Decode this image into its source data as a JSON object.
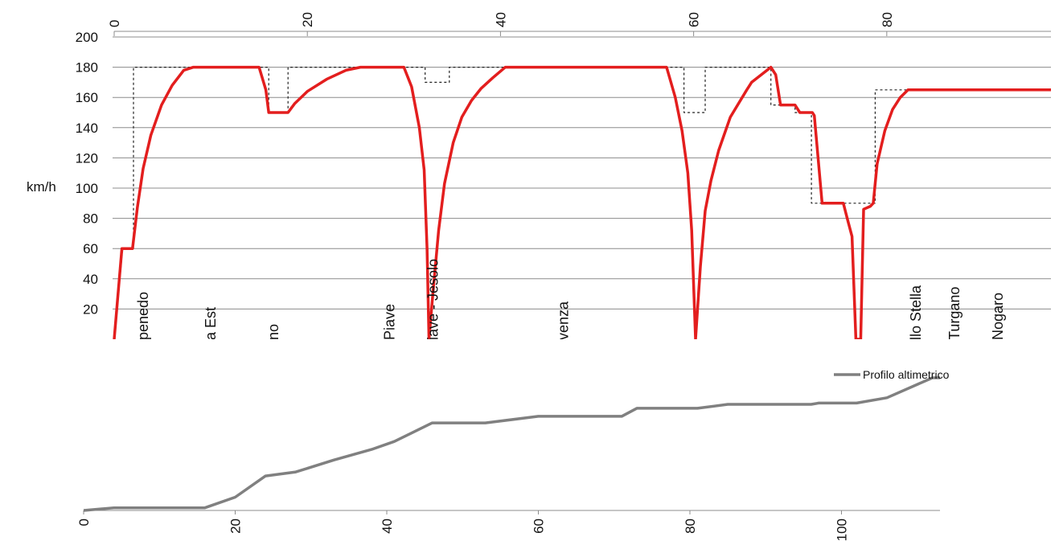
{
  "chart_data": [
    {
      "type": "line",
      "title": "",
      "xlabel": "",
      "ylabel": "km/h",
      "xlim": [
        0,
        97
      ],
      "ylim": [
        0,
        200
      ],
      "x_ticks": [
        0,
        20,
        40,
        60,
        80
      ],
      "y_ticks": [
        0,
        20,
        40,
        60,
        80,
        100,
        120,
        140,
        160,
        180,
        200
      ],
      "grid": true,
      "x_axis_position": "top",
      "series": [
        {
          "color": "#e31e1e",
          "style": "solid",
          "points": [
            [
              0.0,
              0
            ],
            [
              0.8,
              60
            ],
            [
              1.9,
              60
            ],
            [
              2.4,
              87
            ],
            [
              3.0,
              113
            ],
            [
              3.8,
              135
            ],
            [
              4.9,
              155
            ],
            [
              6.0,
              168
            ],
            [
              7.2,
              178
            ],
            [
              8.2,
              180
            ],
            [
              15.0,
              180
            ],
            [
              15.7,
              165
            ],
            [
              16.0,
              150
            ],
            [
              18.0,
              150
            ],
            [
              18.7,
              156
            ],
            [
              20.0,
              164
            ],
            [
              22.0,
              172
            ],
            [
              24.0,
              178
            ],
            [
              25.5,
              180
            ],
            [
              30.0,
              180
            ],
            [
              30.8,
              167
            ],
            [
              31.6,
              140
            ],
            [
              32.1,
              112
            ],
            [
              32.4,
              60
            ],
            [
              32.6,
              0
            ],
            [
              33.0,
              30
            ],
            [
              33.6,
              72
            ],
            [
              34.2,
              103
            ],
            [
              35.1,
              130
            ],
            [
              36.0,
              147
            ],
            [
              37.0,
              158
            ],
            [
              38.0,
              166
            ],
            [
              39.2,
              173
            ],
            [
              40.5,
              180
            ],
            [
              57.2,
              180
            ],
            [
              58.1,
              160
            ],
            [
              58.8,
              138
            ],
            [
              59.4,
              110
            ],
            [
              59.8,
              72
            ],
            [
              60.2,
              0
            ],
            [
              60.7,
              48
            ],
            [
              61.2,
              85
            ],
            [
              61.8,
              105
            ],
            [
              62.6,
              125
            ],
            [
              63.8,
              147
            ],
            [
              65.5,
              165
            ],
            [
              66.0,
              170
            ],
            [
              68.0,
              180
            ],
            [
              68.5,
              175
            ],
            [
              69.0,
              155
            ],
            [
              70.5,
              155
            ],
            [
              71.0,
              150
            ],
            [
              72.3,
              150
            ],
            [
              72.5,
              148
            ],
            [
              73.3,
              90
            ],
            [
              75.5,
              90
            ],
            [
              75.9,
              80
            ],
            [
              76.4,
              68
            ],
            [
              76.8,
              0
            ],
            [
              77.3,
              0
            ],
            [
              77.6,
              86
            ],
            [
              78.3,
              88
            ],
            [
              78.6,
              90
            ],
            [
              79.0,
              116
            ],
            [
              79.8,
              138
            ],
            [
              80.6,
              152
            ],
            [
              81.4,
              160
            ],
            [
              82.2,
              165
            ],
            [
              97.0,
              165
            ]
          ]
        },
        {
          "color": "#222222",
          "style": "dashed",
          "points": [
            [
              0.0,
              0
            ],
            [
              0.9,
              60
            ],
            [
              2.0,
              60
            ],
            [
              2.0,
              180
            ],
            [
              16.0,
              180
            ],
            [
              16.0,
              150
            ],
            [
              18.0,
              150
            ],
            [
              18.0,
              180
            ],
            [
              32.2,
              180
            ],
            [
              32.2,
              170
            ],
            [
              34.7,
              170
            ],
            [
              34.7,
              180
            ],
            [
              59.0,
              180
            ],
            [
              59.0,
              150
            ],
            [
              61.2,
              150
            ],
            [
              61.2,
              180
            ],
            [
              68.0,
              180
            ],
            [
              68.0,
              155
            ],
            [
              70.5,
              155
            ],
            [
              70.5,
              150
            ],
            [
              72.2,
              150
            ],
            [
              72.2,
              90
            ],
            [
              78.8,
              90
            ],
            [
              78.8,
              165
            ],
            [
              97.0,
              165
            ]
          ]
        }
      ],
      "station_labels": [
        {
          "text": "penedo",
          "x": 3.0
        },
        {
          "text": "a Est",
          "x": 10.0
        },
        {
          "text": "no",
          "x": 16.5
        },
        {
          "text": "Piave",
          "x": 28.5
        },
        {
          "text": "iave - Jesolo",
          "x": 33.0
        },
        {
          "text": "venza",
          "x": 46.5
        },
        {
          "text": "llo Stella",
          "x": 83.0
        },
        {
          "text": "Turgano",
          "x": 87.0
        },
        {
          "text": "Nogaro",
          "x": 91.5
        }
      ]
    },
    {
      "type": "line",
      "title": "",
      "xlabel": "",
      "ylabel": "",
      "xlim": [
        0,
        113
      ],
      "ylim": [
        0,
        100
      ],
      "x_ticks": [
        0,
        20,
        40,
        60,
        80,
        100
      ],
      "grid": false,
      "legend": {
        "entries": [
          "Profilo altimetrico"
        ],
        "position": "top-right"
      },
      "series": [
        {
          "name": "Profilo altimetrico",
          "color": "#808080",
          "points": [
            [
              0,
              0
            ],
            [
              4,
              2
            ],
            [
              16,
              2
            ],
            [
              20,
              10
            ],
            [
              24,
              26
            ],
            [
              28,
              29
            ],
            [
              33,
              38
            ],
            [
              38,
              46
            ],
            [
              41,
              52
            ],
            [
              46,
              66
            ],
            [
              53,
              66
            ],
            [
              60,
              71
            ],
            [
              71,
              71
            ],
            [
              73,
              77
            ],
            [
              81,
              77
            ],
            [
              85,
              80
            ],
            [
              96,
              80
            ],
            [
              97,
              81
            ],
            [
              102,
              81
            ],
            [
              106,
              85
            ],
            [
              112,
              100
            ],
            [
              113,
              100
            ]
          ]
        }
      ]
    }
  ]
}
